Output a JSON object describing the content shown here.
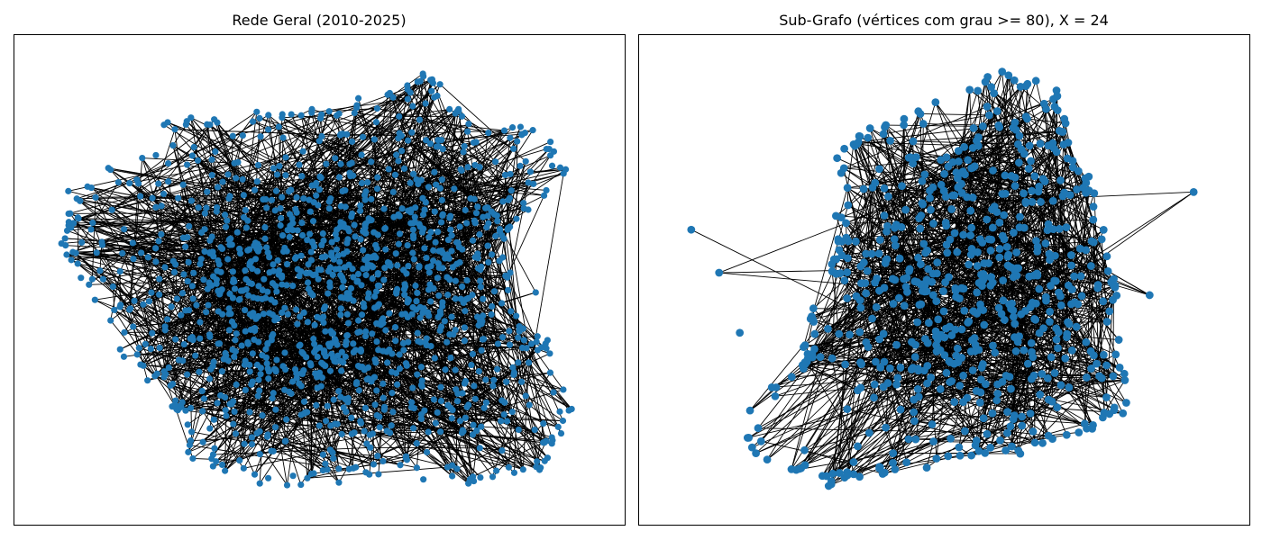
{
  "colors": {
    "node": "#1f77b4",
    "edge": "#000000",
    "frame": "#000000"
  },
  "panels": [
    {
      "id": "left",
      "title": "Rede Geral (2010-2025)",
      "kind": "network",
      "layout": "dense-cluster",
      "density": "very-high",
      "seed": 7
    },
    {
      "id": "right",
      "title": "Sub-Grafo (vértices com grau >= 80), X = 24",
      "kind": "network",
      "layout": "dense-cluster",
      "density": "high",
      "seed": 11
    }
  ]
}
